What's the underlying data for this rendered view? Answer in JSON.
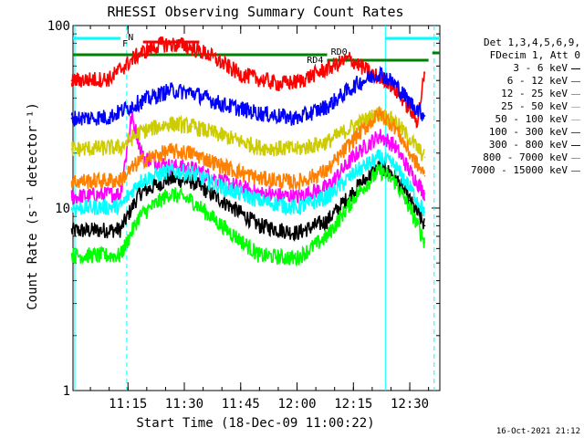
{
  "chart_data": {
    "type": "line",
    "title": "RHESSI Observing Summary Count Rates",
    "xlabel": "Start Time (18-Dec-09 11:00:22)",
    "ylabel": "Count Rate (s⁻¹ detector⁻¹)",
    "y_scale": "log",
    "ylim": [
      1,
      100
    ],
    "xlim": [
      "11:00:22",
      "12:38:00"
    ],
    "x_ticks": [
      "11:15",
      "11:30",
      "11:45",
      "12:00",
      "12:15",
      "12:30"
    ],
    "y_ticks": [
      "1",
      "10",
      "100"
    ],
    "grid": false,
    "legend_placement": "right",
    "legend_header": [
      "Det 1,3,4,5,6,9,",
      "FDecim 1, Att 0"
    ],
    "series": [
      {
        "name": "3 - 6 keV",
        "color": "#000000",
        "x": [
          "11:00",
          "11:13",
          "11:18",
          "11:26",
          "11:32",
          "11:40",
          "11:50",
          "12:00",
          "12:08",
          "12:16",
          "12:22",
          "12:26",
          "12:30",
          "12:34"
        ],
        "values": [
          7.5,
          7.6,
          12,
          14.5,
          14,
          11,
          8,
          7.3,
          8.5,
          13,
          17,
          15,
          11,
          8
        ]
      },
      {
        "name": "6 - 12 keV",
        "color": "#ff00ff",
        "x": [
          "11:00",
          "11:13",
          "11:16",
          "11:19",
          "11:26",
          "11:32",
          "11:40",
          "11:50",
          "12:00",
          "12:08",
          "12:16",
          "12:22",
          "12:26",
          "12:30",
          "12:34"
        ],
        "values": [
          11.5,
          12,
          32,
          19,
          17,
          16.5,
          14,
          12,
          11.5,
          13,
          20,
          25,
          22,
          16,
          12
        ]
      },
      {
        "name": "12 - 25 keV",
        "color": "#00ff00",
        "x": [
          "11:00",
          "11:13",
          "11:18",
          "11:26",
          "11:32",
          "11:40",
          "11:50",
          "12:00",
          "12:08",
          "12:16",
          "12:22",
          "12:26",
          "12:30",
          "12:34"
        ],
        "values": [
          5.5,
          5.5,
          9,
          12,
          11,
          8,
          5.5,
          5.3,
          7,
          12,
          16,
          14,
          10,
          6.5
        ]
      },
      {
        "name": "25 - 50 keV",
        "color": "#00ffff",
        "x": [
          "11:00",
          "11:13",
          "11:18",
          "11:26",
          "11:32",
          "11:40",
          "11:50",
          "12:00",
          "12:08",
          "12:16",
          "12:22",
          "12:26",
          "12:30",
          "12:34"
        ],
        "values": [
          10,
          10.2,
          14,
          16,
          15.5,
          13,
          11,
          10,
          11.5,
          16,
          19,
          17,
          13,
          9.5
        ]
      },
      {
        "name": "50 - 100 keV",
        "color": "#cccc00",
        "x": [
          "11:00",
          "11:13",
          "11:18",
          "11:26",
          "11:32",
          "11:40",
          "11:50",
          "12:00",
          "12:08",
          "12:16",
          "12:22",
          "12:26",
          "12:30",
          "12:34"
        ],
        "values": [
          21,
          21.5,
          26,
          29,
          28,
          25,
          21.5,
          21,
          23,
          29,
          33,
          30,
          24,
          19
        ]
      },
      {
        "name": "100 - 300 keV",
        "color": "#ff0000",
        "x": [
          "11:00",
          "11:10",
          "11:18",
          "11:24",
          "11:30",
          "11:36",
          "11:45",
          "11:55",
          "12:00",
          "12:08",
          "12:14",
          "12:20",
          "12:24",
          "12:28",
          "12:32",
          "12:34"
        ],
        "values": [
          50,
          51,
          70,
          79,
          78,
          70,
          54,
          48,
          49,
          58,
          66,
          54,
          50,
          40,
          30,
          55
        ]
      },
      {
        "name": "300 - 800 keV",
        "color": "#0000ff",
        "x": [
          "11:00",
          "11:10",
          "11:18",
          "11:26",
          "11:32",
          "11:40",
          "11:50",
          "12:00",
          "12:08",
          "12:16",
          "12:22",
          "12:26",
          "12:30",
          "12:34"
        ],
        "values": [
          31,
          31.5,
          38,
          44,
          43,
          37,
          33,
          31,
          36,
          48,
          55,
          48,
          38,
          32
        ]
      },
      {
        "name": "800 - 7000 keV",
        "color": "#ff8000",
        "x": [
          "11:00",
          "11:13",
          "11:18",
          "11:26",
          "11:32",
          "11:40",
          "11:50",
          "12:00",
          "12:08",
          "12:16",
          "12:22",
          "12:26",
          "12:30",
          "12:34"
        ],
        "values": [
          14,
          14.2,
          18,
          20.5,
          20,
          17,
          14.5,
          13.8,
          16,
          25,
          33,
          28,
          20,
          15
        ]
      },
      {
        "name": "7000 - 15000 keV",
        "color": "#996600",
        "x": [],
        "values": []
      }
    ],
    "annotations": [
      {
        "label": "N",
        "color": "#00ffff"
      },
      {
        "label": "F",
        "color": "#ff0000"
      },
      {
        "label": "RD4",
        "color": "#008000"
      },
      {
        "label": "RD0",
        "color": "#008000"
      }
    ],
    "footer": "16-Oct-2021 21:12"
  }
}
